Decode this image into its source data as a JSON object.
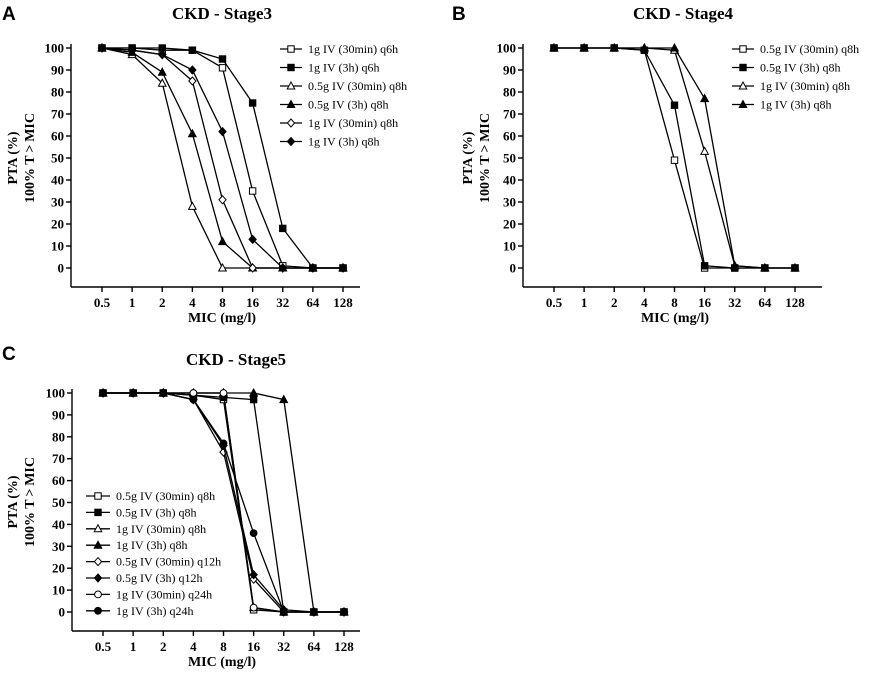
{
  "chart_data": [
    {
      "type": "line",
      "panel": "A",
      "title": "CKD - Stage3",
      "xlabel": "MIC (mg/l)",
      "ylabel": "PTA (%)",
      "ylabel2": "100% T > MIC",
      "x_scale": "log2",
      "categories": [
        "0.5",
        "1",
        "2",
        "4",
        "8",
        "16",
        "32",
        "64",
        "128"
      ],
      "yticks": [
        "0",
        "10",
        "20",
        "30",
        "40",
        "50",
        "60",
        "70",
        "80",
        "90",
        "100"
      ],
      "ylim": [
        0,
        100
      ],
      "legend_position": "top-right",
      "series": [
        {
          "name": "1g IV (30min) q6h",
          "marker": "open-square",
          "values": [
            100,
            100,
            99,
            99,
            91,
            35,
            1,
            0,
            0
          ]
        },
        {
          "name": "1g IV (3h) q6h",
          "marker": "filled-square",
          "values": [
            100,
            100,
            100,
            99,
            95,
            75,
            18,
            0,
            0
          ]
        },
        {
          "name": "0.5g IV (30min) q8h",
          "marker": "open-triangle",
          "values": [
            100,
            97,
            84,
            28,
            0,
            0,
            0,
            0,
            0
          ]
        },
        {
          "name": "0.5g IV (3h) q8h",
          "marker": "filled-triangle",
          "values": [
            100,
            98,
            89,
            61,
            12,
            0,
            0,
            0,
            0
          ]
        },
        {
          "name": "1g IV (30min) q8h",
          "marker": "open-diamond",
          "values": [
            100,
            99,
            97,
            85,
            31,
            0,
            0,
            0,
            0
          ]
        },
        {
          "name": "1g IV (3h) q8h",
          "marker": "filled-diamond",
          "values": [
            100,
            99,
            97,
            90,
            62,
            13,
            0,
            0,
            0
          ]
        }
      ]
    },
    {
      "type": "line",
      "panel": "B",
      "title": "CKD - Stage4",
      "xlabel": "MIC (mg/l)",
      "ylabel": "PTA (%)",
      "ylabel2": "100% T > MIC",
      "x_scale": "log2",
      "categories": [
        "0.5",
        "1",
        "2",
        "4",
        "8",
        "16",
        "32",
        "64",
        "128"
      ],
      "yticks": [
        "0",
        "10",
        "20",
        "30",
        "40",
        "50",
        "60",
        "70",
        "80",
        "90",
        "100"
      ],
      "ylim": [
        0,
        100
      ],
      "legend_position": "top-right",
      "series": [
        {
          "name": "0.5g IV (30min) q8h",
          "marker": "open-square",
          "values": [
            100,
            100,
            100,
            99,
            49,
            0,
            0,
            0,
            0
          ]
        },
        {
          "name": "0.5g IV (3h) q8h",
          "marker": "filled-square",
          "values": [
            100,
            100,
            100,
            99,
            74,
            1,
            0,
            0,
            0
          ]
        },
        {
          "name": "1g IV (30min) q8h",
          "marker": "open-triangle",
          "values": [
            100,
            100,
            100,
            100,
            99,
            53,
            1,
            0,
            0
          ]
        },
        {
          "name": "1g IV (3h) q8h",
          "marker": "filled-triangle",
          "values": [
            100,
            100,
            100,
            100,
            100,
            77,
            1,
            0,
            0
          ]
        }
      ]
    },
    {
      "type": "line",
      "panel": "C",
      "title": "CKD - Stage5",
      "xlabel": "MIC (mg/l)",
      "ylabel": "PTA (%)",
      "ylabel2": "100% T > MIC",
      "x_scale": "log2",
      "categories": [
        "0.5",
        "1",
        "2",
        "4",
        "8",
        "16",
        "32",
        "64",
        "128"
      ],
      "yticks": [
        "0",
        "10",
        "20",
        "30",
        "40",
        "50",
        "60",
        "70",
        "80",
        "90",
        "100"
      ],
      "ylim": [
        0,
        100
      ],
      "legend_position": "bottom-left",
      "series": [
        {
          "name": "0.5g IV (30min) q8h",
          "marker": "open-square",
          "values": [
            100,
            100,
            100,
            99,
            97,
            1,
            0,
            0,
            0
          ]
        },
        {
          "name": "0.5g IV (3h) q8h",
          "marker": "filled-square",
          "values": [
            100,
            100,
            100,
            99,
            98,
            97,
            0,
            0,
            0
          ]
        },
        {
          "name": "1g IV (30min) q8h",
          "marker": "open-triangle",
          "values": [
            100,
            100,
            100,
            100,
            100,
            2,
            0,
            0,
            0
          ]
        },
        {
          "name": "1g IV (3h) q8h",
          "marker": "filled-triangle",
          "values": [
            100,
            100,
            100,
            100,
            100,
            100,
            97,
            0,
            0
          ]
        },
        {
          "name": "0.5g IV (30min) q12h",
          "marker": "open-diamond",
          "values": [
            100,
            100,
            100,
            97,
            73,
            15,
            0,
            0,
            0
          ]
        },
        {
          "name": "0.5g IV (3h) q12h",
          "marker": "filled-diamond",
          "values": [
            100,
            100,
            100,
            97,
            76,
            17,
            1,
            0,
            0
          ]
        },
        {
          "name": "1g IV (30min) q24h",
          "marker": "open-circle",
          "values": [
            100,
            100,
            100,
            100,
            100,
            2,
            0,
            0,
            0
          ]
        },
        {
          "name": "1g IV (3h) q24h",
          "marker": "filled-circle",
          "values": [
            100,
            100,
            100,
            97,
            77,
            36,
            0,
            0,
            0
          ]
        }
      ]
    }
  ]
}
